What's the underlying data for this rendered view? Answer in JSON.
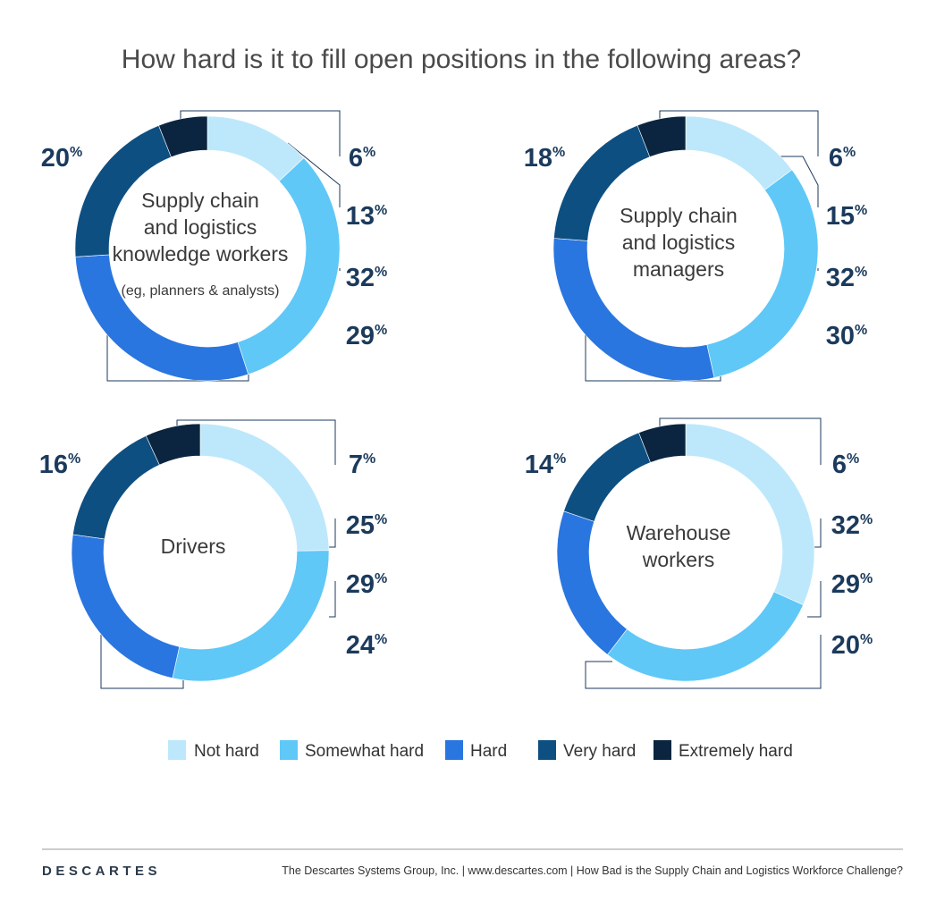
{
  "colors": {
    "not_hard": "#bde8fb",
    "somewhat_hard": "#5fc8f7",
    "hard": "#2a76e0",
    "very_hard": "#0e4f82",
    "extremely_hard": "#0b2540",
    "text_dark": "#1b3a5c"
  },
  "chart_data": [
    {
      "type": "pie",
      "subtype": "donut",
      "title": "How hard is it to fill open positions in the following areas?",
      "center_label": [
        "Supply chain",
        "and logistics",
        "knowledge workers"
      ],
      "center_sublabel": "(eg, planners & analysts)",
      "categories": [
        "Not hard",
        "Somewhat hard",
        "Hard",
        "Very hard",
        "Extremely hard"
      ],
      "values": [
        13,
        32,
        29,
        20,
        6
      ],
      "labels": [
        "13",
        "32",
        "29",
        "20",
        "6"
      ]
    },
    {
      "type": "pie",
      "subtype": "donut",
      "title": "How hard is it to fill open positions in the following areas?",
      "center_label": [
        "Supply chain",
        "and logistics",
        "managers"
      ],
      "center_sublabel": "",
      "categories": [
        "Not hard",
        "Somewhat hard",
        "Hard",
        "Very hard",
        "Extremely hard"
      ],
      "values": [
        15,
        32,
        30,
        18,
        6
      ],
      "labels": [
        "15",
        "32",
        "30",
        "18",
        "6"
      ]
    },
    {
      "type": "pie",
      "subtype": "donut",
      "title": "How hard is it to fill open positions in the following areas?",
      "center_label": [
        "Drivers"
      ],
      "center_sublabel": "",
      "categories": [
        "Not hard",
        "Somewhat hard",
        "Hard",
        "Very hard",
        "Extremely hard"
      ],
      "values": [
        25,
        29,
        24,
        16,
        7
      ],
      "labels": [
        "25",
        "29",
        "24",
        "16",
        "7"
      ]
    },
    {
      "type": "pie",
      "subtype": "donut",
      "title": "How hard is it to fill open positions in the following areas?",
      "center_label": [
        "Warehouse",
        "workers"
      ],
      "center_sublabel": "",
      "categories": [
        "Not hard",
        "Somewhat hard",
        "Hard",
        "Very hard",
        "Extremely hard"
      ],
      "values": [
        32,
        29,
        20,
        14,
        6
      ],
      "labels": [
        "32",
        "29",
        "20",
        "14",
        "6"
      ]
    }
  ],
  "header": {
    "title": "How hard is it to fill open positions in the following areas?"
  },
  "percent_sign": "%",
  "legend": [
    {
      "label": "Not hard",
      "color_key": "not_hard"
    },
    {
      "label": "Somewhat hard",
      "color_key": "somewhat_hard"
    },
    {
      "label": "Hard",
      "color_key": "hard"
    },
    {
      "label": "Very hard",
      "color_key": "very_hard"
    },
    {
      "label": "Extremely hard",
      "color_key": "extremely_hard"
    }
  ],
  "footer": {
    "logo": "DESCARTES",
    "credit": "The Descartes Systems Group, Inc.  |  www.descartes.com  |  How Bad is the Supply Chain and Logistics Workforce Challenge?"
  }
}
